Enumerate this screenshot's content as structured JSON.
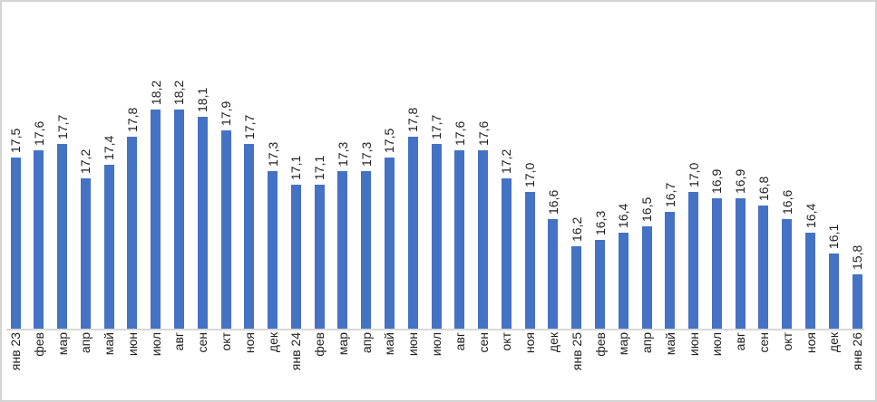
{
  "chart_data": {
    "type": "bar",
    "title": "",
    "xlabel": "",
    "ylabel": "",
    "grid": false,
    "legend_position": "none",
    "ylim": [
      15,
      18.5
    ],
    "categories": [
      "янв 23",
      "фев",
      "мар",
      "апр",
      "май",
      "июн",
      "июл",
      "авг",
      "сен",
      "окт",
      "ноя",
      "дек",
      "янв 24",
      "фев",
      "мар",
      "апр",
      "май",
      "июн",
      "июл",
      "авг",
      "сен",
      "окт",
      "ноя",
      "дек",
      "янв 25",
      "фев",
      "мар",
      "апр",
      "май",
      "июн",
      "июл",
      "авг",
      "сен",
      "окт",
      "ноя",
      "дек",
      "янв 26"
    ],
    "values": [
      17.5,
      17.6,
      17.7,
      17.2,
      17.4,
      17.8,
      18.2,
      18.2,
      18.1,
      17.9,
      17.7,
      17.3,
      17.1,
      17.1,
      17.3,
      17.3,
      17.5,
      17.8,
      17.7,
      17.6,
      17.6,
      17.2,
      17.0,
      16.6,
      16.2,
      16.3,
      16.4,
      16.5,
      16.7,
      17.0,
      16.9,
      16.9,
      16.8,
      16.6,
      16.4,
      16.1,
      15.8
    ],
    "value_labels": [
      "17,5",
      "17,6",
      "17,7",
      "17,2",
      "17,4",
      "17,8",
      "18,2",
      "18,2",
      "18,1",
      "17,9",
      "17,7",
      "17,3",
      "17,1",
      "17,1",
      "17,3",
      "17,3",
      "17,5",
      "17,8",
      "17,7",
      "17,6",
      "17,6",
      "17,2",
      "17,0",
      "16,6",
      "16,2",
      "16,3",
      "16,4",
      "16,5",
      "16,7",
      "17,0",
      "16,9",
      "16,9",
      "16,8",
      "16,6",
      "16,4",
      "16,1",
      "15,8"
    ],
    "colors": {
      "bar": "#4472C4",
      "axis_line": "#d9d9d9",
      "label_text": "#1f1f1f",
      "frame_border": "#d3d3d3",
      "background": "#ffffff"
    }
  }
}
